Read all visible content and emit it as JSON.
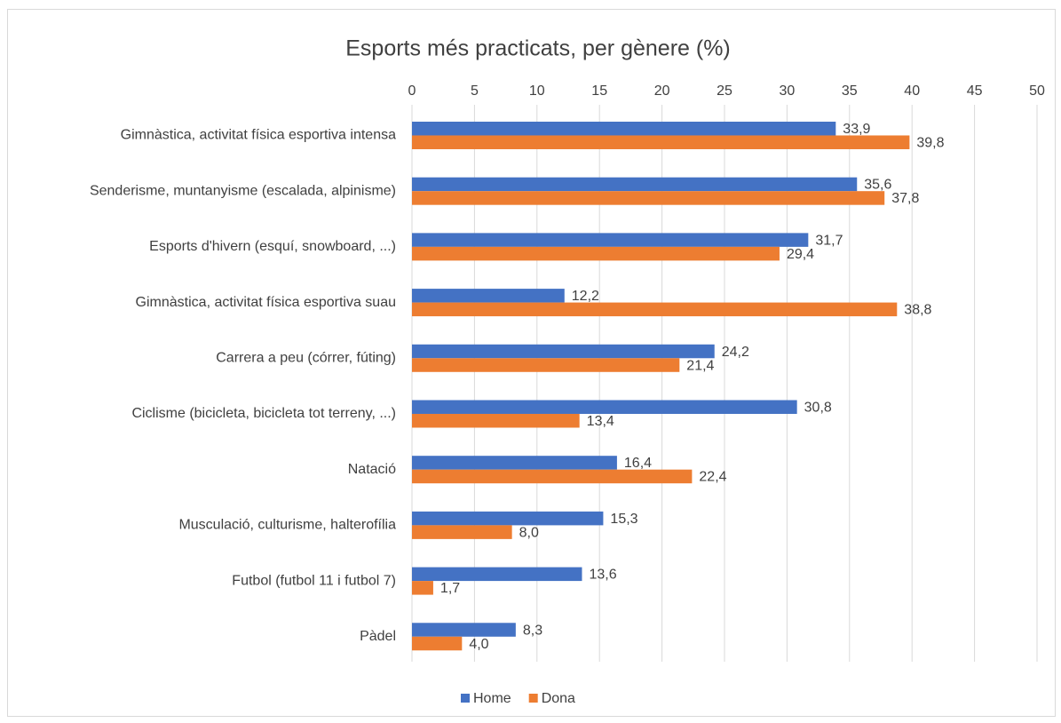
{
  "chart_data": {
    "type": "barh",
    "title": "Esports més practicats, per gènere (%)",
    "categories": [
      "Gimnàstica, activitat física esportiva intensa",
      "Senderisme, muntanyisme (escalada, alpinisme)",
      "Esports d'hivern (esquí, snowboard, ...)",
      "Gimnàstica, activitat física esportiva suau",
      "Carrera a peu (córrer, fúting)",
      "Ciclisme (bicicleta, bicicleta tot terreny, ...)",
      "Natació",
      "Musculació, culturisme, halterofília",
      "Futbol (futbol 11 i futbol 7)",
      "Pàdel"
    ],
    "series": [
      {
        "name": "Home",
        "color": "#4472c4",
        "values": [
          33.9,
          35.6,
          31.7,
          12.2,
          24.2,
          30.8,
          16.4,
          15.3,
          13.6,
          8.3
        ],
        "value_labels": [
          "33,9",
          "35,6",
          "31,7",
          "12,2",
          "24,2",
          "30,8",
          "16,4",
          "15,3",
          "13,6",
          "8,3"
        ]
      },
      {
        "name": "Dona",
        "color": "#ed7d31",
        "values": [
          39.8,
          37.8,
          29.4,
          38.8,
          21.4,
          13.4,
          22.4,
          8.0,
          1.7,
          4.0
        ],
        "value_labels": [
          "39,8",
          "37,8",
          "29,4",
          "38,8",
          "21,4",
          "13,4",
          "22,4",
          "8,0",
          "1,7",
          "4,0"
        ]
      }
    ],
    "xlim": [
      0,
      50
    ],
    "xticks": [
      0,
      5,
      10,
      15,
      20,
      25,
      30,
      35,
      40,
      45,
      50
    ],
    "grid": true,
    "legend": "bottom"
  }
}
